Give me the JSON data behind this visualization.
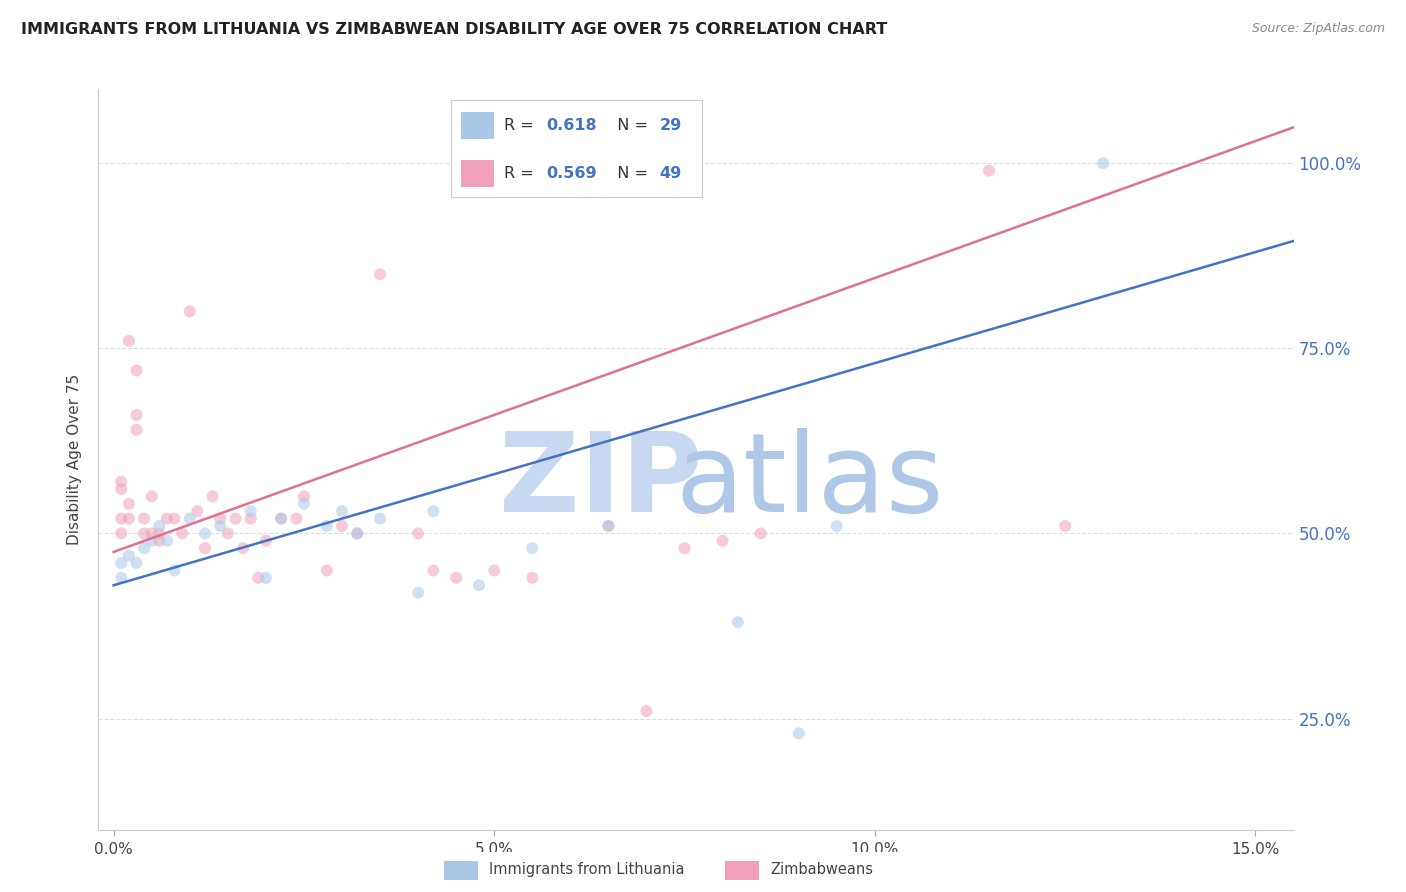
{
  "title": "IMMIGRANTS FROM LITHUANIA VS ZIMBABWEAN DISABILITY AGE OVER 75 CORRELATION CHART",
  "source": "Source: ZipAtlas.com",
  "ylabel": "Disability Age Over 75",
  "xlabel_ticks": [
    "0.0%",
    "5.0%",
    "10.0%",
    "15.0%"
  ],
  "xlabel_vals": [
    0.0,
    0.05,
    0.1,
    0.15
  ],
  "ylabel_ticks": [
    "25.0%",
    "50.0%",
    "75.0%",
    "100.0%"
  ],
  "ylabel_vals": [
    0.25,
    0.5,
    0.75,
    1.0
  ],
  "xlim": [
    -0.002,
    0.155
  ],
  "ylim": [
    0.1,
    1.1
  ],
  "legend1_color": "#A8C8E8",
  "legend2_color": "#F0A0B8",
  "series1_color": "#A8C8E8",
  "series2_color": "#F0A0B8",
  "line1_color": "#4472C4",
  "line2_color": "#E07090",
  "watermark_zip_color": "#C8D8F0",
  "watermark_atlas_color": "#B0C8E8",
  "background_color": "#FFFFFF",
  "grid_color": "#DDDDDD",
  "right_ytick_color": "#4472C4",
  "title_color": "#222222",
  "source_color": "#888888",
  "legend_r_color": "#333333",
  "legend_n_color": "#4472C4",
  "lithuania_x": [
    0.001,
    0.001,
    0.002,
    0.003,
    0.004,
    0.005,
    0.006,
    0.007,
    0.008,
    0.01,
    0.012,
    0.014,
    0.018,
    0.02,
    0.022,
    0.025,
    0.028,
    0.03,
    0.032,
    0.035,
    0.04,
    0.042,
    0.048,
    0.055,
    0.065,
    0.082,
    0.09,
    0.095,
    0.13
  ],
  "lithuania_y": [
    0.46,
    0.44,
    0.47,
    0.46,
    0.48,
    0.49,
    0.51,
    0.49,
    0.45,
    0.52,
    0.5,
    0.51,
    0.53,
    0.44,
    0.52,
    0.54,
    0.51,
    0.53,
    0.5,
    0.52,
    0.42,
    0.53,
    0.43,
    0.48,
    0.51,
    0.38,
    0.23,
    0.51,
    1.0
  ],
  "zimbabwe_x": [
    0.001,
    0.001,
    0.001,
    0.001,
    0.002,
    0.002,
    0.002,
    0.003,
    0.003,
    0.003,
    0.004,
    0.004,
    0.005,
    0.005,
    0.006,
    0.006,
    0.007,
    0.008,
    0.009,
    0.01,
    0.011,
    0.012,
    0.013,
    0.014,
    0.015,
    0.016,
    0.017,
    0.018,
    0.019,
    0.02,
    0.022,
    0.024,
    0.025,
    0.028,
    0.03,
    0.032,
    0.035,
    0.04,
    0.042,
    0.045,
    0.05,
    0.055,
    0.065,
    0.07,
    0.075,
    0.08,
    0.085,
    0.115,
    0.125
  ],
  "zimbabwe_y": [
    0.5,
    0.52,
    0.56,
    0.57,
    0.52,
    0.54,
    0.76,
    0.72,
    0.66,
    0.64,
    0.52,
    0.5,
    0.5,
    0.55,
    0.5,
    0.49,
    0.52,
    0.52,
    0.5,
    0.8,
    0.53,
    0.48,
    0.55,
    0.52,
    0.5,
    0.52,
    0.48,
    0.52,
    0.44,
    0.49,
    0.52,
    0.52,
    0.55,
    0.45,
    0.51,
    0.5,
    0.85,
    0.5,
    0.45,
    0.44,
    0.45,
    0.44,
    0.51,
    0.26,
    0.48,
    0.49,
    0.5,
    0.99,
    0.51
  ],
  "marker_size": 75,
  "alpha": 0.55,
  "line1_intercept": 0.43,
  "line1_slope": 3.0,
  "line2_intercept": 0.475,
  "line2_slope": 3.7
}
